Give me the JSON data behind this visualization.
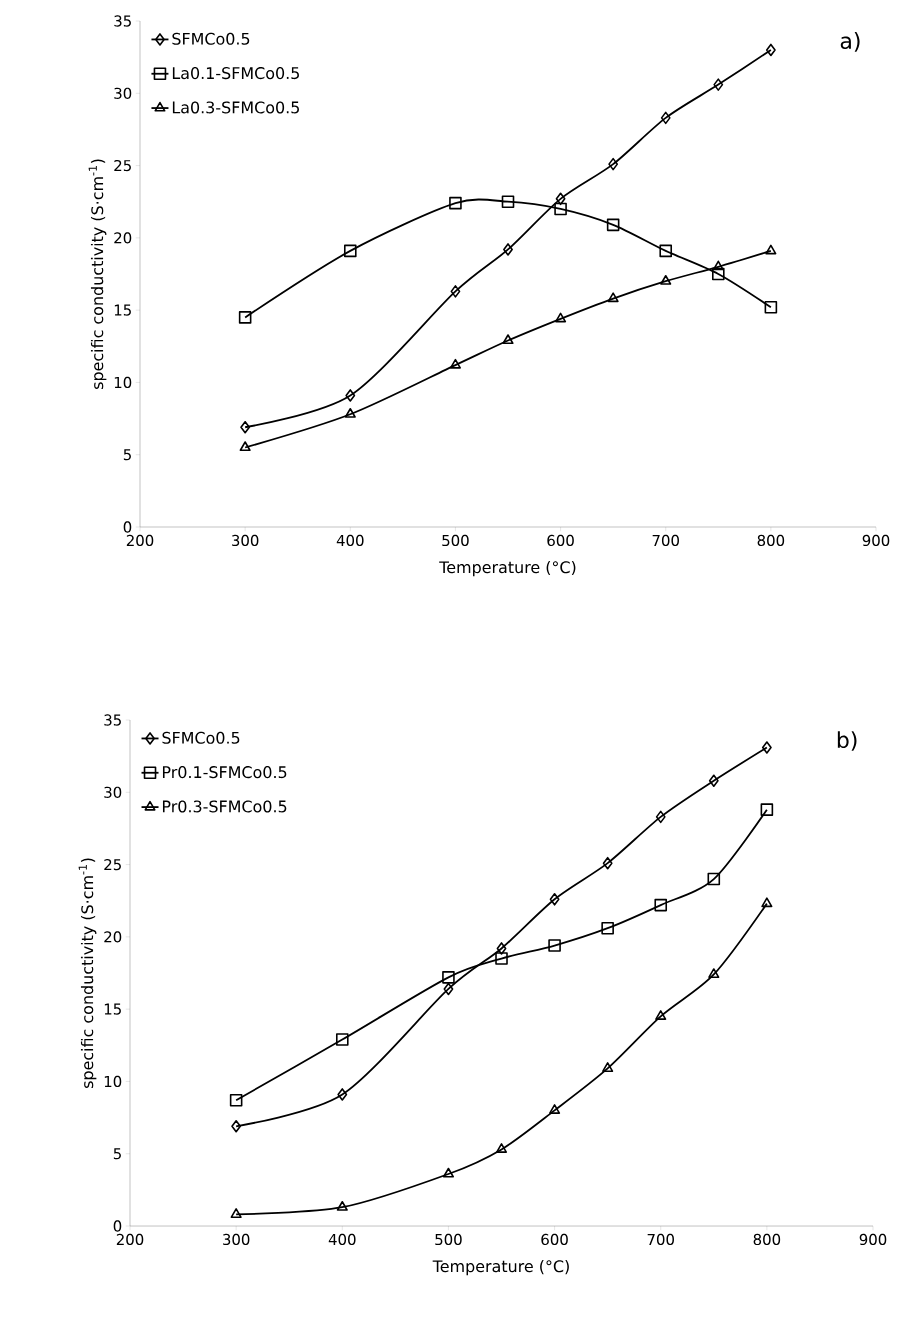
{
  "chart_data": [
    {
      "type": "line",
      "xlabel": "Temperature (°C)",
      "ylabel": "specific conductivity (S·cm$^{-1}$)",
      "annotations": [
        "a)"
      ],
      "xlim": [
        200,
        900
      ],
      "xticks": [
        200,
        300,
        400,
        500,
        600,
        700,
        800,
        900
      ],
      "ylim": [
        0,
        35
      ],
      "yticks": [
        0,
        5,
        10,
        15,
        20,
        25,
        30,
        35
      ],
      "legend": "top left",
      "line_style": "solid",
      "x": [
        300,
        400,
        500,
        550,
        600,
        650,
        700,
        750,
        800
      ],
      "series": [
        {
          "name": "SFMCo0.5",
          "color": "#000000",
          "marker": "diamond",
          "values": [
            6.9,
            9.1,
            16.3,
            19.2,
            22.7,
            25.1,
            28.3,
            30.6,
            33.0
          ]
        },
        {
          "name": "La0.1-SFMCo0.5",
          "color": "#000000",
          "marker": "square",
          "values": [
            14.5,
            19.1,
            22.4,
            22.5,
            22.0,
            20.9,
            19.1,
            17.5,
            15.2
          ]
        },
        {
          "name": "La0.3-SFMCo0.5",
          "color": "#000000",
          "marker": "triangle",
          "values": [
            5.5,
            7.8,
            11.2,
            12.9,
            14.4,
            15.8,
            17.0,
            18.0,
            19.1
          ]
        }
      ]
    },
    {
      "type": "line",
      "xlabel": "Temperature (°C)",
      "ylabel": "specific conductivity (S·cm$^{-1}$)",
      "annotations": [
        "b)"
      ],
      "xlim": [
        200,
        900
      ],
      "xticks": [
        200,
        300,
        400,
        500,
        600,
        700,
        800,
        900
      ],
      "ylim": [
        0,
        35
      ],
      "yticks": [
        0,
        5,
        10,
        15,
        20,
        25,
        30,
        35
      ],
      "legend": "top left",
      "line_style": "solid",
      "x": [
        300,
        400,
        500,
        550,
        600,
        650,
        700,
        750,
        800
      ],
      "series": [
        {
          "name": "SFMCo0.5",
          "color": "#000000",
          "marker": "diamond",
          "values": [
            6.9,
            9.1,
            16.4,
            19.2,
            22.6,
            25.1,
            28.3,
            30.8,
            33.1
          ]
        },
        {
          "name": "Pr0.1-SFMCo0.5",
          "color": "#000000",
          "marker": "square",
          "values": [
            8.7,
            12.9,
            17.2,
            18.5,
            19.4,
            20.6,
            22.2,
            24.0,
            28.8
          ]
        },
        {
          "name": "Pr0.3-SFMCo0.5",
          "color": "#000000",
          "marker": "triangle",
          "values": [
            0.8,
            1.3,
            3.6,
            5.3,
            8.0,
            10.9,
            14.5,
            17.4,
            22.3
          ]
        }
      ]
    }
  ]
}
